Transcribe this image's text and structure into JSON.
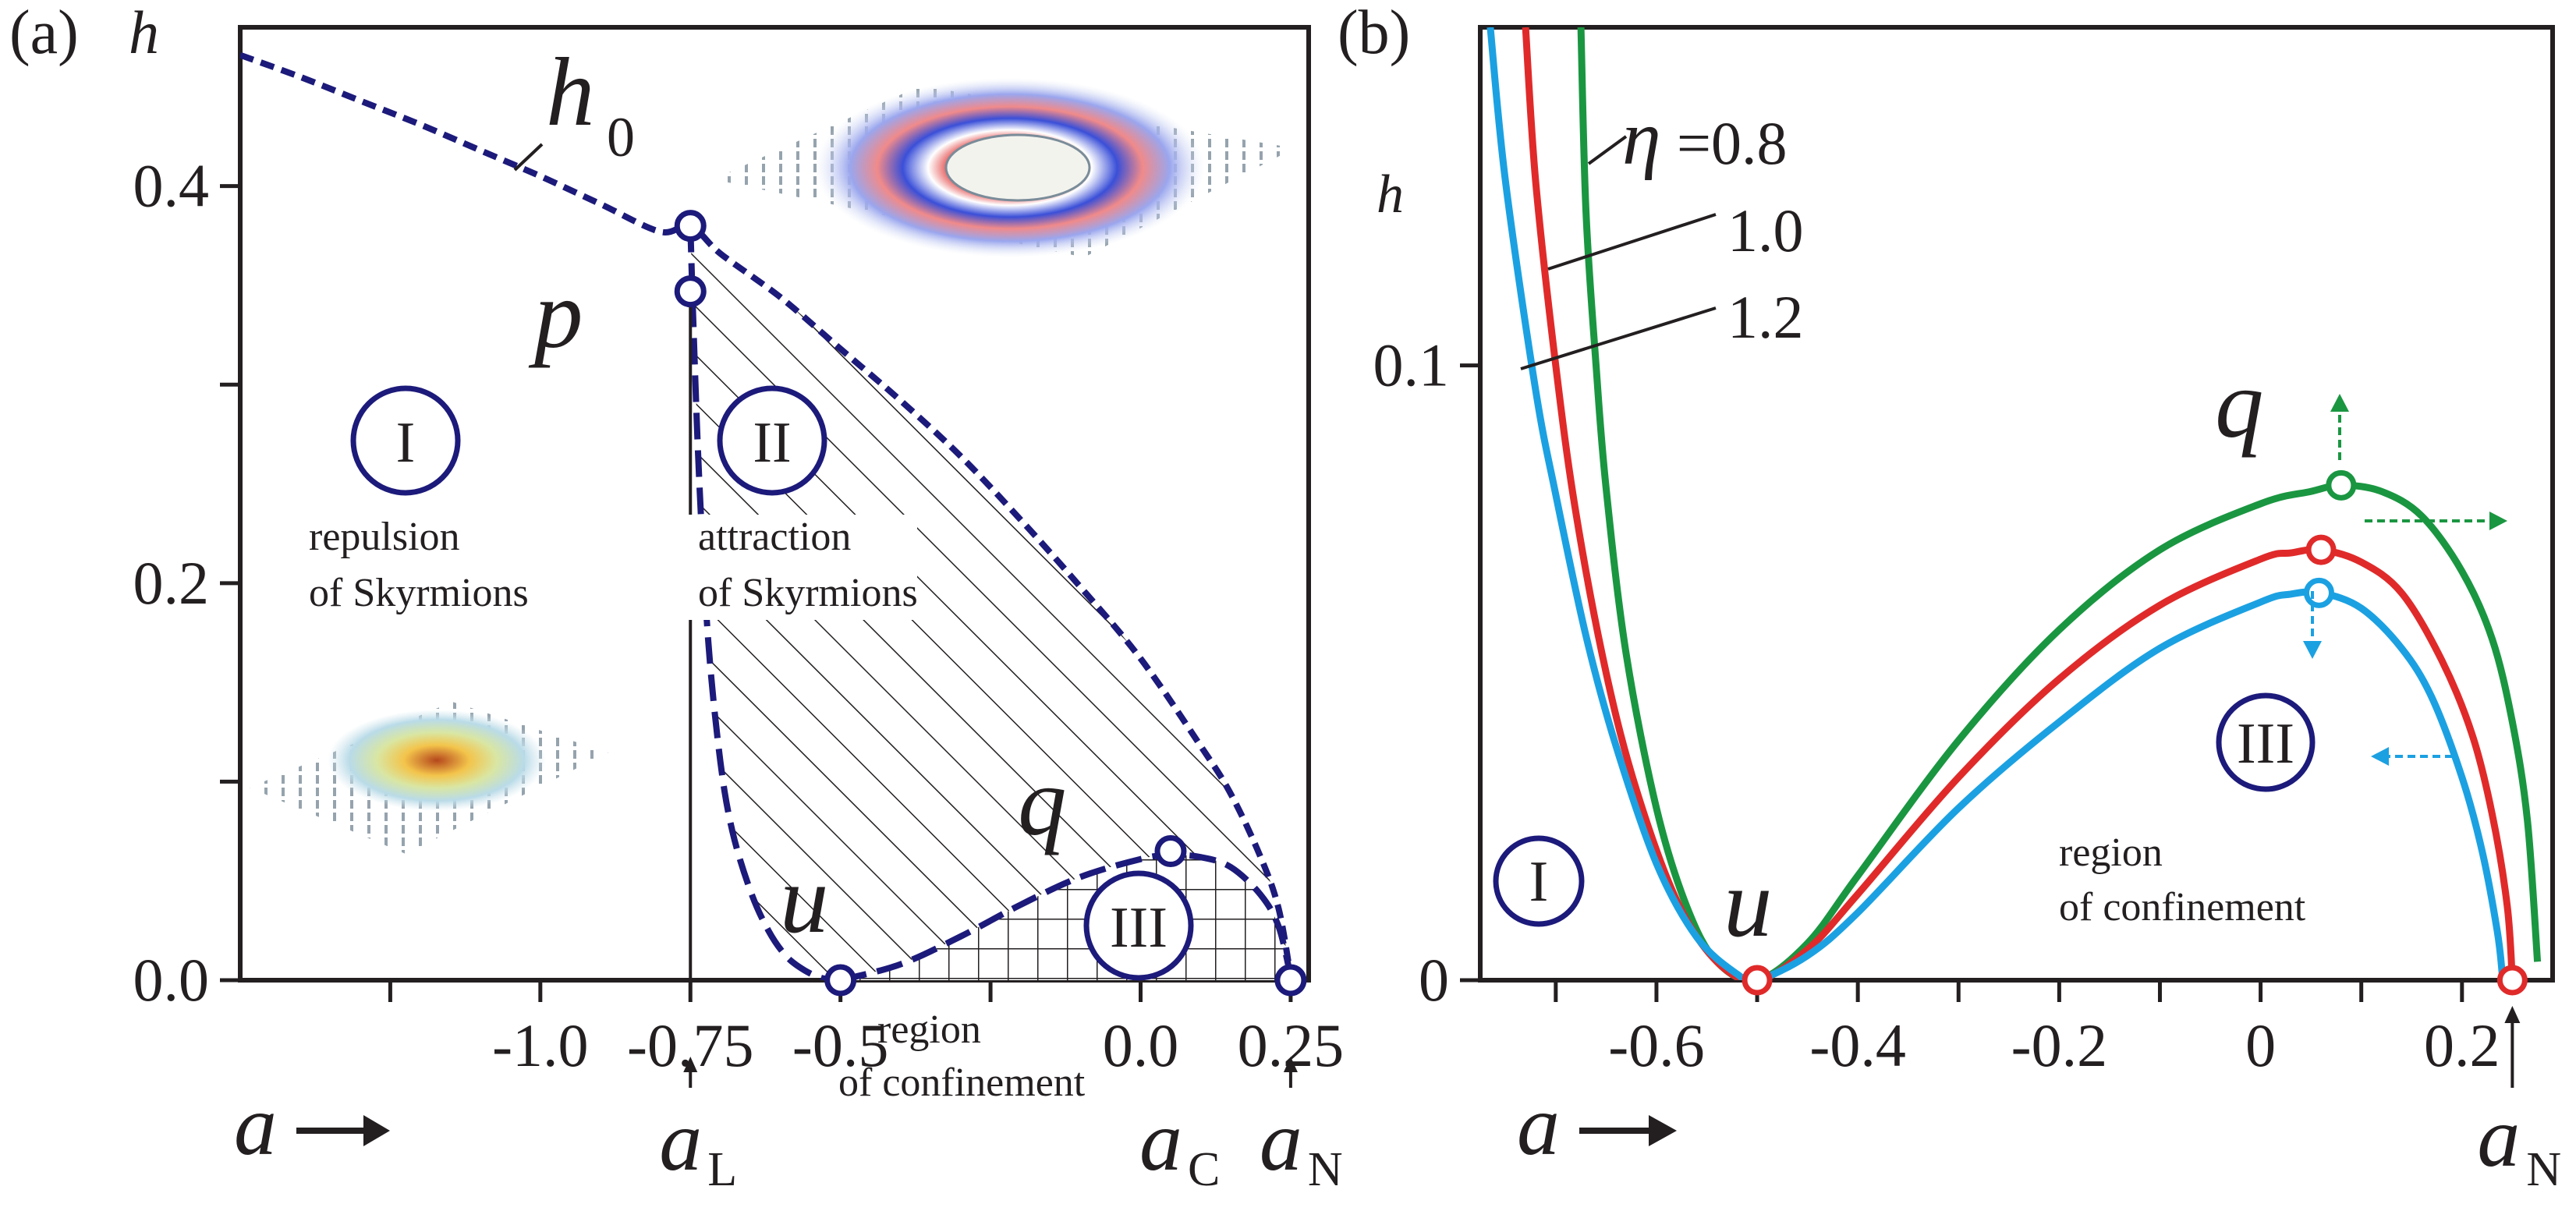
{
  "colors": {
    "ink": "#231f20",
    "navy": "#1c1a7a",
    "green": "#1a9641",
    "red": "#e02a2a",
    "blue": "#1ba1e2",
    "white": "#ffffff"
  },
  "chart_data": [
    {
      "type": "line",
      "panel": "(a)",
      "panel_label": "(a)",
      "ylabel": "h",
      "xlabel": "a",
      "xlim": [
        -1.5,
        0.28
      ],
      "ylim": [
        0,
        0.48
      ],
      "x_ticks": [
        -1.25,
        -1.0,
        -0.75,
        -0.5,
        -0.25,
        0.0,
        0.25
      ],
      "x_tick_labels": [
        {
          "x": -1.0,
          "label": "-1.0"
        },
        {
          "x": -0.75,
          "label": "-0.75"
        },
        {
          "x": -0.5,
          "label": "-0.5"
        },
        {
          "x": 0.0,
          "label": "0.0"
        },
        {
          "x": 0.25,
          "label": "0.25"
        }
      ],
      "y_ticks": [
        0.0,
        0.1,
        0.2,
        0.3,
        0.4
      ],
      "y_tick_labels": [
        {
          "y": 0.0,
          "label": "0.0"
        },
        {
          "y": 0.2,
          "label": "0.2"
        },
        {
          "y": 0.4,
          "label": "0.4"
        }
      ],
      "series": [
        {
          "name": "h0",
          "style": "short-dashed",
          "x": [
            -1.5,
            -1.4,
            -1.3,
            -1.2,
            -1.1,
            -1.0,
            -0.9,
            -0.8,
            -0.75,
            -0.7,
            -0.6,
            -0.5,
            -0.4,
            -0.3,
            -0.2,
            -0.1,
            0.0,
            0.1,
            0.15,
            0.2,
            0.23,
            0.25
          ],
          "y": [
            0.466,
            0.455,
            0.443,
            0.431,
            0.418,
            0.405,
            0.391,
            0.377,
            0.38,
            0.366,
            0.344,
            0.318,
            0.292,
            0.264,
            0.232,
            0.198,
            0.162,
            0.118,
            0.094,
            0.062,
            0.036,
            0.002
          ]
        },
        {
          "name": "boundary I/II",
          "style": "long-dashed",
          "x": [
            -0.75,
            -0.745,
            -0.735,
            -0.72,
            -0.7,
            -0.68,
            -0.65,
            -0.62,
            -0.59,
            -0.56,
            -0.53,
            -0.5
          ],
          "y": [
            0.38,
            0.33,
            0.25,
            0.17,
            0.11,
            0.075,
            0.045,
            0.025,
            0.012,
            0.005,
            0.001,
            0.0
          ]
        },
        {
          "name": "boundary III",
          "style": "long-dashed",
          "x": [
            -0.5,
            -0.4,
            -0.3,
            -0.2,
            -0.1,
            0.0,
            0.05,
            0.1,
            0.15,
            0.2,
            0.23,
            0.25
          ],
          "y": [
            0.0,
            0.008,
            0.022,
            0.038,
            0.052,
            0.061,
            0.063,
            0.062,
            0.057,
            0.043,
            0.027,
            0.002
          ]
        },
        {
          "name": "aL",
          "style": "solid",
          "x": [
            -0.75,
            -0.75
          ],
          "y": [
            0.0,
            0.348
          ]
        }
      ],
      "points": [
        {
          "name": "h0-end",
          "x": -0.75,
          "y": 0.38,
          "label": ""
        },
        {
          "name": "p",
          "x": -0.75,
          "y": 0.347,
          "label": "p"
        },
        {
          "name": "u",
          "x": -0.5,
          "y": 0.0,
          "label": "u"
        },
        {
          "name": "q",
          "x": 0.05,
          "y": 0.065,
          "label": "q"
        },
        {
          "name": "aN",
          "x": 0.25,
          "y": 0.0,
          "label": ""
        }
      ],
      "curve_label": {
        "text": "h",
        "sub": "0"
      },
      "regions": [
        {
          "id": "I",
          "label": "I",
          "note_lines": [
            "repulsion",
            "of Skyrmions"
          ]
        },
        {
          "id": "II",
          "label": "II",
          "note_lines": [
            "attraction",
            "of Skyrmions"
          ]
        },
        {
          "id": "III",
          "label": "III",
          "note_lines": [
            "region",
            "of confinement"
          ]
        }
      ],
      "markers": [
        {
          "name": "aL",
          "x": -0.75,
          "text": "a",
          "sub": "L"
        },
        {
          "name": "aC",
          "x": 0.05,
          "text": "a",
          "sub": "C"
        },
        {
          "name": "aN",
          "x": 0.25,
          "text": "a",
          "sub": "N"
        }
      ]
    },
    {
      "type": "line",
      "panel": "(b)",
      "panel_label": "(b)",
      "ylabel": "h",
      "xlabel": "a",
      "xlim": [
        -0.775,
        0.29
      ],
      "ylim": [
        0,
        0.155
      ],
      "x_ticks": [
        -0.7,
        -0.6,
        -0.5,
        -0.4,
        -0.3,
        -0.2,
        -0.1,
        0.0,
        0.1,
        0.2
      ],
      "x_tick_labels": [
        {
          "x": -0.6,
          "label": "-0.6"
        },
        {
          "x": -0.4,
          "label": "-0.4"
        },
        {
          "x": -0.2,
          "label": "-0.2"
        },
        {
          "x": 0.0,
          "label": "0"
        },
        {
          "x": 0.2,
          "label": "0.2"
        }
      ],
      "y_ticks": [
        0.0,
        0.1
      ],
      "y_tick_labels": [
        {
          "y": 0.0,
          "label": "0"
        },
        {
          "y": 0.1,
          "label": "0.1"
        }
      ],
      "legend_title": "η",
      "series": [
        {
          "name": "0.8",
          "label": "=0.8",
          "color": "#1a9641",
          "x": [
            -0.675,
            -0.67,
            -0.66,
            -0.65,
            -0.63,
            -0.6,
            -0.57,
            -0.54,
            -0.5,
            -0.45,
            -0.4,
            -0.3,
            -0.2,
            -0.1,
            0.0,
            0.05,
            0.08,
            0.12,
            0.16,
            0.2,
            0.23,
            0.25,
            0.265,
            0.275
          ],
          "y": [
            0.155,
            0.125,
            0.1,
            0.08,
            0.053,
            0.028,
            0.012,
            0.003,
            0.0,
            0.006,
            0.017,
            0.039,
            0.057,
            0.07,
            0.0775,
            0.0795,
            0.0805,
            0.0795,
            0.0755,
            0.0665,
            0.0555,
            0.042,
            0.026,
            0.003
          ]
        },
        {
          "name": "1.0",
          "label": "1.0",
          "color": "#e02a2a",
          "x": [
            -0.73,
            -0.72,
            -0.7,
            -0.68,
            -0.65,
            -0.62,
            -0.58,
            -0.54,
            -0.5,
            -0.45,
            -0.4,
            -0.3,
            -0.2,
            -0.1,
            0.0,
            0.03,
            0.06,
            0.1,
            0.14,
            0.18,
            0.21,
            0.23,
            0.245,
            0.25
          ],
          "y": [
            0.155,
            0.13,
            0.1,
            0.076,
            0.05,
            0.031,
            0.013,
            0.003,
            0.0,
            0.005,
            0.014,
            0.033,
            0.049,
            0.061,
            0.0685,
            0.0695,
            0.07,
            0.068,
            0.063,
            0.052,
            0.04,
            0.027,
            0.012,
            0.0
          ]
        },
        {
          "name": "1.2",
          "label": "1.2",
          "color": "#1ba1e2",
          "x": [
            -0.765,
            -0.75,
            -0.72,
            -0.7,
            -0.67,
            -0.64,
            -0.6,
            -0.56,
            -0.52,
            -0.5,
            -0.45,
            -0.4,
            -0.3,
            -0.2,
            -0.1,
            0.0,
            0.03,
            0.06,
            0.1,
            0.14,
            0.17,
            0.2,
            0.22,
            0.235,
            0.24
          ],
          "y": [
            0.155,
            0.13,
            0.096,
            0.079,
            0.056,
            0.038,
            0.019,
            0.007,
            0.001,
            0.0,
            0.004,
            0.011,
            0.028,
            0.042,
            0.054,
            0.0615,
            0.0628,
            0.063,
            0.0605,
            0.054,
            0.046,
            0.033,
            0.021,
            0.008,
            0.001
          ]
        }
      ],
      "points": [
        {
          "name": "u",
          "x": -0.5,
          "y": 0.0,
          "color": "#e02a2a",
          "label": "u"
        },
        {
          "name": "q-green",
          "x": 0.08,
          "y": 0.0805,
          "color": "#1a9641",
          "label": "q"
        },
        {
          "name": "q-red",
          "x": 0.06,
          "y": 0.07,
          "color": "#e02a2a",
          "label": ""
        },
        {
          "name": "q-blue",
          "x": 0.058,
          "y": 0.063,
          "color": "#1ba1e2",
          "label": ""
        },
        {
          "name": "aN",
          "x": 0.25,
          "y": 0.0,
          "color": "#e02a2a",
          "label": ""
        }
      ],
      "regions": [
        {
          "id": "I",
          "label": "I",
          "note_lines": []
        },
        {
          "id": "III",
          "label": "III",
          "note_lines": [
            "region",
            "of confinement"
          ]
        }
      ],
      "markers": [
        {
          "name": "aN",
          "x": 0.25,
          "text": "a",
          "sub": "N"
        }
      ]
    }
  ]
}
